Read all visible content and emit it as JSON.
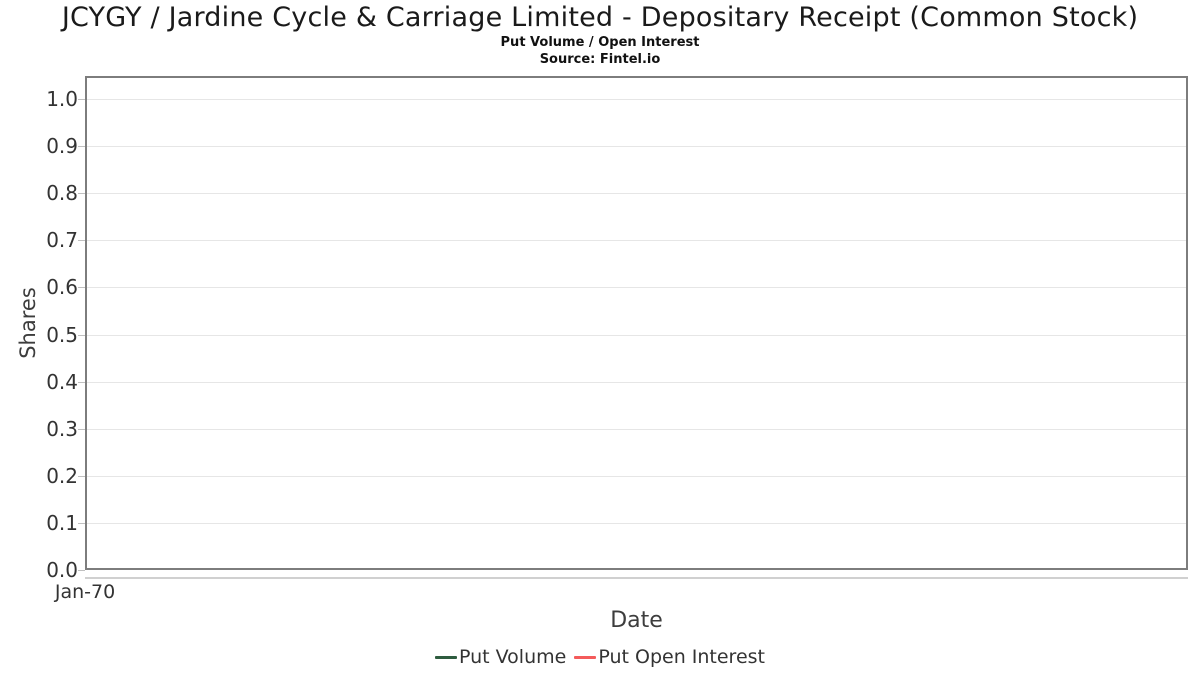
{
  "chart_data": {
    "type": "line",
    "title": "JCYGY / Jardine Cycle & Carriage Limited - Depositary Receipt (Common Stock)",
    "subtitle": "Put Volume / Open Interest",
    "source": "Source: Fintel.io",
    "xlabel": "Date",
    "ylabel": "Shares",
    "ylim": [
      0.0,
      1.0
    ],
    "y_ticks": [
      "1.0",
      "0.9",
      "0.8",
      "0.7",
      "0.6",
      "0.5",
      "0.4",
      "0.3",
      "0.2",
      "0.1",
      "0.0"
    ],
    "x_ticks": [
      "Jan-70"
    ],
    "grid": true,
    "legend_position": "bottom",
    "plot_empty": true,
    "series": [
      {
        "name": "Put Volume",
        "color": "#2e5c3f",
        "values": []
      },
      {
        "name": "Put Open Interest",
        "color": "#f45b5b",
        "values": []
      }
    ],
    "colors": {
      "grid": "#e6e6e6",
      "plot_border": "#7d7d7d",
      "x_axis_line": "#d0d0d0",
      "tick_text": "#333333",
      "axis_label_text": "#3d3d3d",
      "title_text": "#1a1a1a"
    }
  }
}
